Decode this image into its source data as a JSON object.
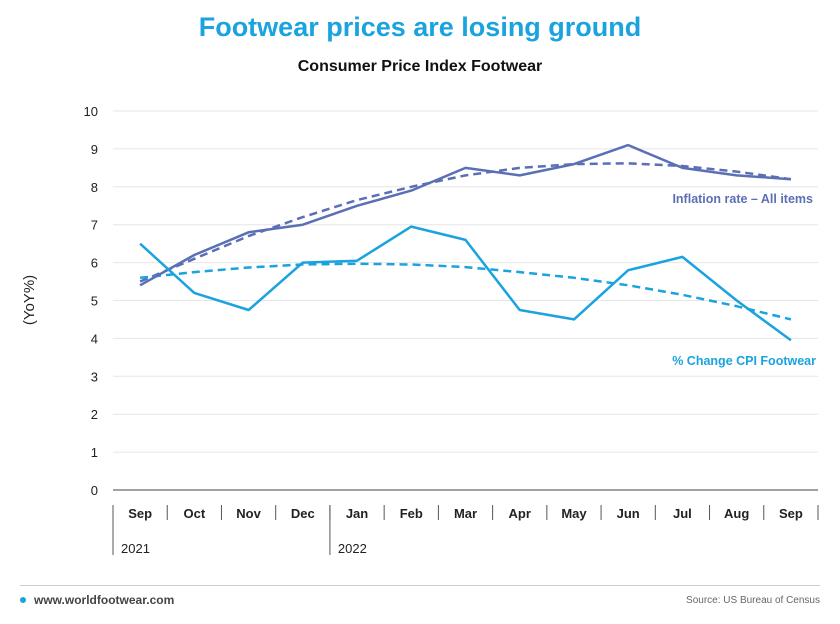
{
  "title": "Footwear prices are losing ground",
  "subtitle": "Consumer Price Index Footwear",
  "footer": {
    "site": "www.worldfootwear.com",
    "source": "Source: US Bureau of Census"
  },
  "colors": {
    "title": "#1aa3de",
    "footwear": "#1aa3de",
    "inflation": "#5b6fb5"
  },
  "chart_data": {
    "type": "line",
    "categories": [
      "Sep",
      "Oct",
      "Nov",
      "Dec",
      "Jan",
      "Feb",
      "Mar",
      "Apr",
      "May",
      "Jun",
      "Jul",
      "Aug",
      "Sep"
    ],
    "year_labels": [
      {
        "label": "2021",
        "start_index": 0
      },
      {
        "label": "2022",
        "start_index": 4
      }
    ],
    "ylabel": "(YoY%)",
    "ylim": [
      0,
      10
    ],
    "yticks": [
      0,
      1,
      2,
      3,
      4,
      5,
      6,
      7,
      8,
      9,
      10
    ],
    "grid": true,
    "series": [
      {
        "name": "Inflation rate – All items",
        "color": "#5b6fb5",
        "values": [
          5.4,
          6.2,
          6.8,
          7.0,
          7.5,
          7.9,
          8.5,
          8.3,
          8.6,
          9.1,
          8.5,
          8.3,
          8.2
        ],
        "trend": [
          5.5,
          6.1,
          6.7,
          7.2,
          7.65,
          8.0,
          8.3,
          8.5,
          8.6,
          8.62,
          8.55,
          8.4,
          8.2
        ]
      },
      {
        "name": "% Change CPI Footwear",
        "color": "#1aa3de",
        "values": [
          6.5,
          5.2,
          4.75,
          6.0,
          6.05,
          6.95,
          6.6,
          4.75,
          4.5,
          5.8,
          6.15,
          5.0,
          3.95
        ],
        "trend": [
          5.6,
          5.75,
          5.87,
          5.95,
          5.97,
          5.95,
          5.88,
          5.75,
          5.6,
          5.4,
          5.15,
          4.85,
          4.5
        ]
      }
    ]
  }
}
